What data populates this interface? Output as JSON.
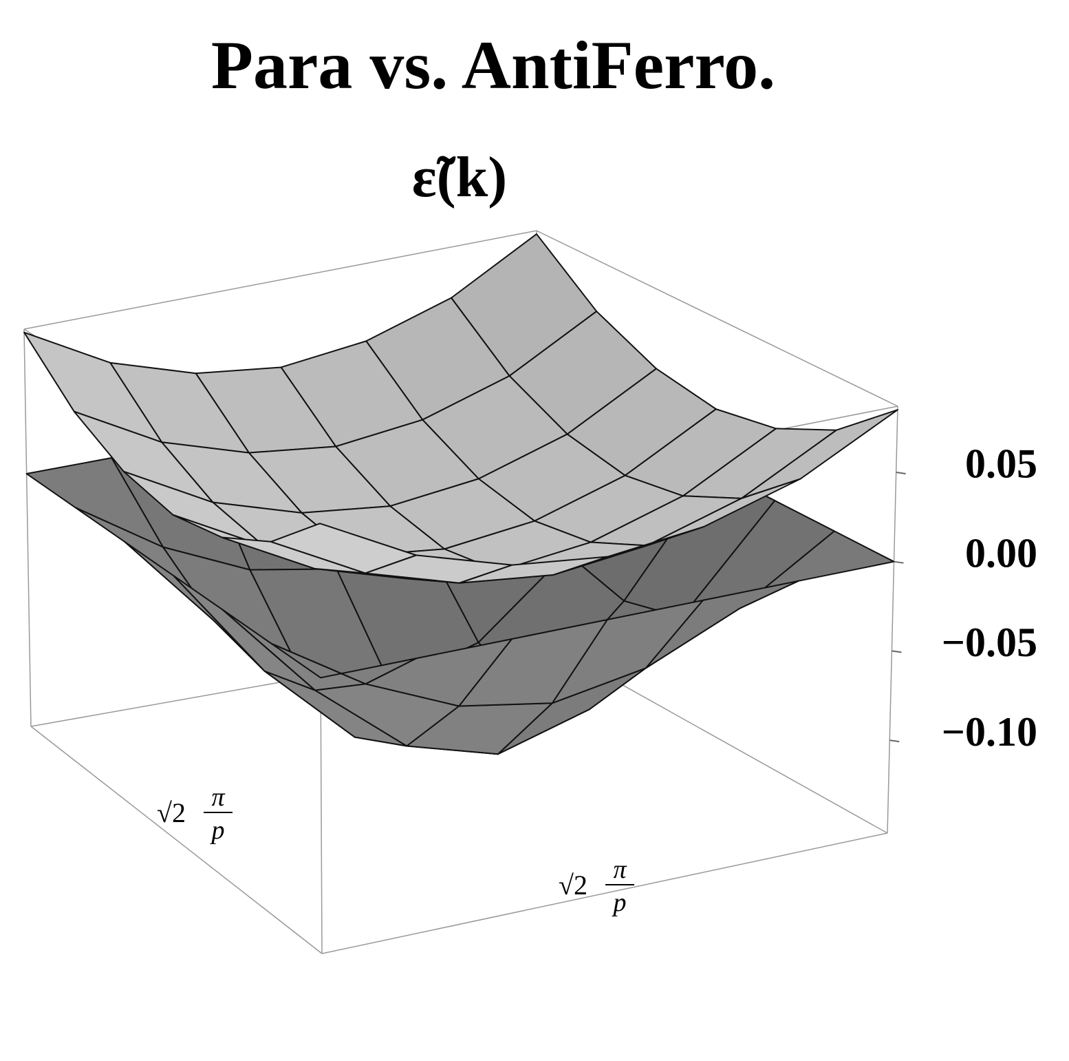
{
  "chart_data": {
    "type": "surface",
    "title": "Para vs. AntiFerro.",
    "subtitle": "ε̃(k)",
    "zlim": [
      -0.152,
      0.087
    ],
    "zticks": [
      {
        "value": 0.05,
        "label": "0.05"
      },
      {
        "value": 0.0,
        "label": "0.00"
      },
      {
        "value": -0.05,
        "label": "−0.05"
      },
      {
        "value": -0.1,
        "label": "−0.10"
      }
    ],
    "x_label": {
      "root": "√2",
      "numerator": "π",
      "denominator": "p"
    },
    "y_label": {
      "root": "√2",
      "numerator": "π",
      "denominator": "p"
    },
    "series": [
      {
        "color": "#e4e4e4",
        "z": [
          [
            0.085,
            0.057,
            0.041,
            0.035,
            0.041,
            0.057,
            0.085
          ],
          [
            0.057,
            0.029,
            0.013,
            0.007,
            0.013,
            0.029,
            0.057
          ],
          [
            0.041,
            0.013,
            -0.003,
            -0.009,
            -0.003,
            0.013,
            0.041
          ],
          [
            0.035,
            0.007,
            -0.009,
            -0.015,
            -0.009,
            0.007,
            0.035
          ],
          [
            0.041,
            0.013,
            -0.003,
            -0.009,
            -0.003,
            0.013,
            0.041
          ],
          [
            0.057,
            0.029,
            0.013,
            0.007,
            0.013,
            0.029,
            0.057
          ],
          [
            0.085,
            0.057,
            0.041,
            0.035,
            0.041,
            0.057,
            0.085
          ]
        ]
      },
      {
        "color": "#909090",
        "z": [
          [
            0,
            0,
            0,
            0,
            0,
            0,
            0
          ],
          [
            0,
            -0.033,
            -0.056,
            -0.065,
            -0.056,
            -0.033,
            0
          ],
          [
            0,
            -0.056,
            -0.098,
            -0.113,
            -0.098,
            -0.056,
            0
          ],
          [
            0,
            -0.065,
            -0.113,
            -0.13,
            -0.113,
            -0.065,
            0
          ],
          [
            0,
            -0.056,
            -0.098,
            -0.113,
            -0.098,
            -0.056,
            0
          ],
          [
            0,
            -0.033,
            -0.056,
            -0.065,
            -0.056,
            -0.033,
            0
          ],
          [
            0,
            0,
            0,
            0,
            0,
            0,
            0
          ]
        ]
      }
    ]
  }
}
